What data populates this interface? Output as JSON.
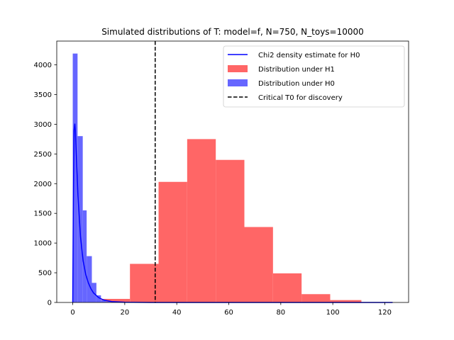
{
  "chart_data": {
    "type": "bar",
    "title": "Simulated distributions of T: model=f, N=750, N_toys=10000",
    "xlabel": "",
    "ylabel": "",
    "xlim": [
      -6.15,
      129.15
    ],
    "ylim": [
      0,
      4400
    ],
    "x_ticks": [
      0,
      20,
      40,
      60,
      80,
      100,
      120
    ],
    "y_ticks": [
      0,
      500,
      1000,
      1500,
      2000,
      2500,
      3000,
      3500,
      4000
    ],
    "legend_position": "top-right",
    "grid": false,
    "series": [
      {
        "name": "Distribution under H1",
        "kind": "histogram",
        "color": "#ff6666",
        "bin_edges": [
          0,
          11,
          22,
          33,
          44,
          55,
          66,
          77,
          88,
          99,
          111,
          123
        ],
        "counts": [
          0,
          60,
          650,
          2030,
          2750,
          2400,
          1270,
          490,
          140,
          40,
          5
        ]
      },
      {
        "name": "Distribution under H0",
        "kind": "histogram",
        "color": "#6666ff",
        "bin_edges": [
          0,
          1.85,
          3.85,
          5.35,
          7.35,
          9.1,
          10.85,
          12.85,
          14.6
        ],
        "counts": [
          4190,
          2800,
          1550,
          780,
          330,
          120,
          40,
          15
        ]
      },
      {
        "name": "Chi2 density estimate for H0",
        "kind": "line",
        "color": "#0000ff",
        "x": [
          0,
          0.2,
          0.5,
          0.8,
          1,
          1.5,
          2,
          3,
          4,
          5,
          6,
          7,
          8,
          10,
          12,
          15,
          20,
          30,
          50,
          80,
          123
        ],
        "y": [
          0,
          1500,
          2900,
          3010,
          2900,
          2350,
          1800,
          1100,
          700,
          470,
          330,
          230,
          160,
          80,
          40,
          15,
          5,
          0,
          0,
          0,
          0
        ]
      },
      {
        "name": "Critical T0 for discovery",
        "kind": "vline",
        "color": "#000000",
        "x": 31.7
      }
    ]
  }
}
